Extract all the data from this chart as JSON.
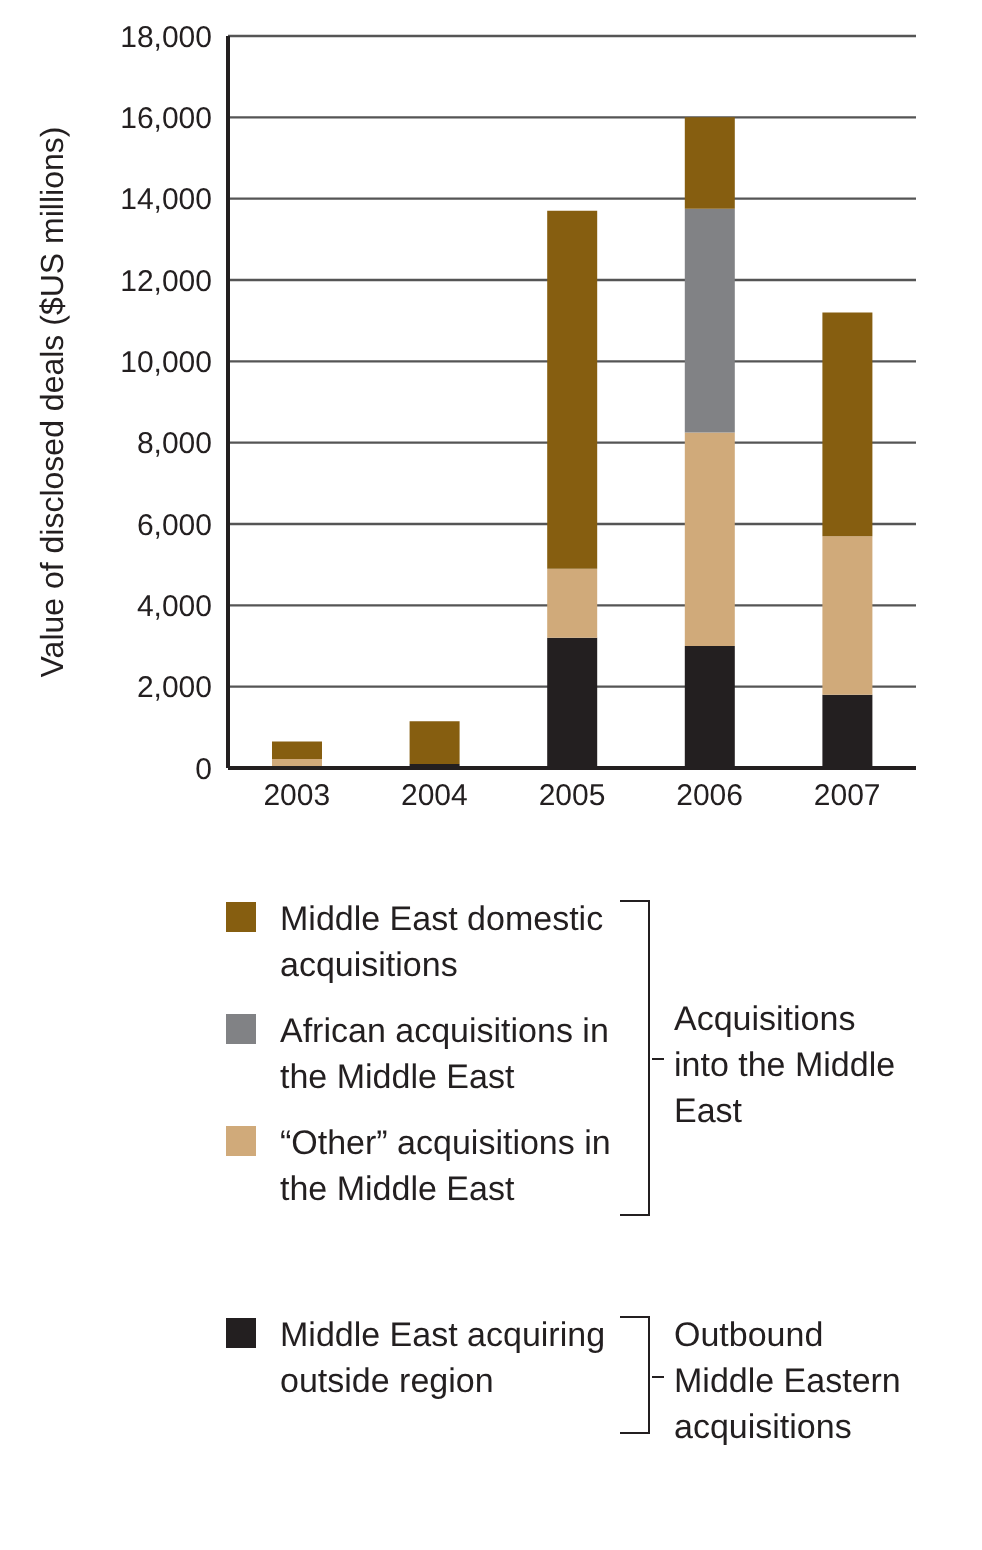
{
  "chart_data": {
    "type": "bar",
    "stacked": true,
    "ylabel": "Value of disclosed deals ($US millions)",
    "categories": [
      "2003",
      "2004",
      "2005",
      "2006",
      "2007"
    ],
    "series": [
      {
        "name": "Middle East acquiring outside region",
        "color": "#231f20",
        "values": [
          0,
          100,
          3200,
          3000,
          1800
        ]
      },
      {
        "name": "“Other” acquisitions in the Middle East",
        "color": "#d0aa7a",
        "values": [
          220,
          0,
          1700,
          5250,
          3900
        ]
      },
      {
        "name": "African acquisitions in the Middle East",
        "color": "#818285",
        "values": [
          0,
          0,
          0,
          5500,
          0
        ]
      },
      {
        "name": "Middle East domestic acquisitions",
        "color": "#865e10",
        "values": [
          430,
          1050,
          8800,
          2250,
          5500
        ]
      }
    ],
    "ylim": [
      0,
      18000
    ],
    "yticks": [
      0,
      {
        "value": 2000,
        "label": "2,000"
      },
      {
        "value": 4000,
        "label": "4,000"
      },
      {
        "value": 6000,
        "label": "6,000"
      },
      {
        "value": 8000,
        "label": "8,000"
      },
      {
        "value": 10000,
        "label": "10,000"
      },
      {
        "value": 12000,
        "label": "12,000"
      },
      {
        "value": 14000,
        "label": "14,000"
      },
      {
        "value": 16000,
        "label": "16,000"
      },
      {
        "value": 18000,
        "label": "18,000"
      }
    ],
    "grid": "y",
    "legend": "bottom",
    "annotations": [
      "Acquisitions into the Middle East",
      "Outbound Middle Eastern acquisitions"
    ]
  }
}
